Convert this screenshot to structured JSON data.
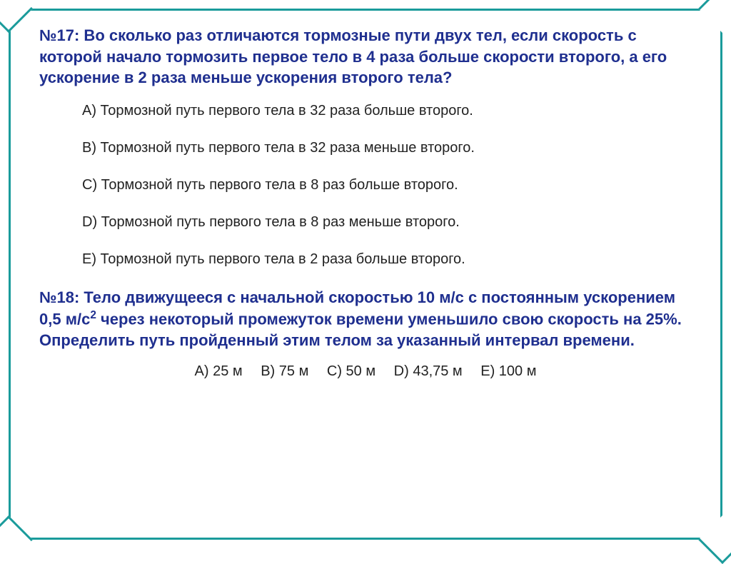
{
  "colors": {
    "frame_border": "#1a9b9b",
    "question_text": "#1f2f8f",
    "option_text": "#222222",
    "background": "#ffffff"
  },
  "typography": {
    "question_fontsize": 22,
    "question_weight": "bold",
    "option_fontsize": 20,
    "font_family": "Arial"
  },
  "q17": {
    "title": "№17: Во сколько раз отличаются тормозные пути двух тел, если скорость с которой начало тормозить первое тело в 4 раза больше скорости второго, а его ускорение в 2 раза меньше ускорения второго тела?",
    "options": {
      "A": "A) Тормозной путь первого тела в 32 раза больше второго.",
      "B": "B) Тормозной путь первого тела в 32 раза меньше второго.",
      "C": "C) Тормозной путь первого тела в 8 раз больше второго.",
      "D": "D) Тормозной путь первого тела в 8 раз меньше второго.",
      "E": "E) Тормозной путь первого тела в 2 раза больше второго."
    }
  },
  "q18": {
    "title_pre": "№18: Тело движущееся с начальной скоростью 10 м/с с постоянным ускорением 0,5 м/с",
    "title_sup": "2",
    "title_post": " через некоторый промежуток времени уменьшило свою скорость на 25%. Определить путь пройденный этим телом за указанный интервал времени.",
    "options": {
      "A": "A) 25 м",
      "B": "B) 75 м",
      "C": "C) 50 м",
      "D": "D) 43,75 м",
      "E": "E) 100 м"
    }
  }
}
